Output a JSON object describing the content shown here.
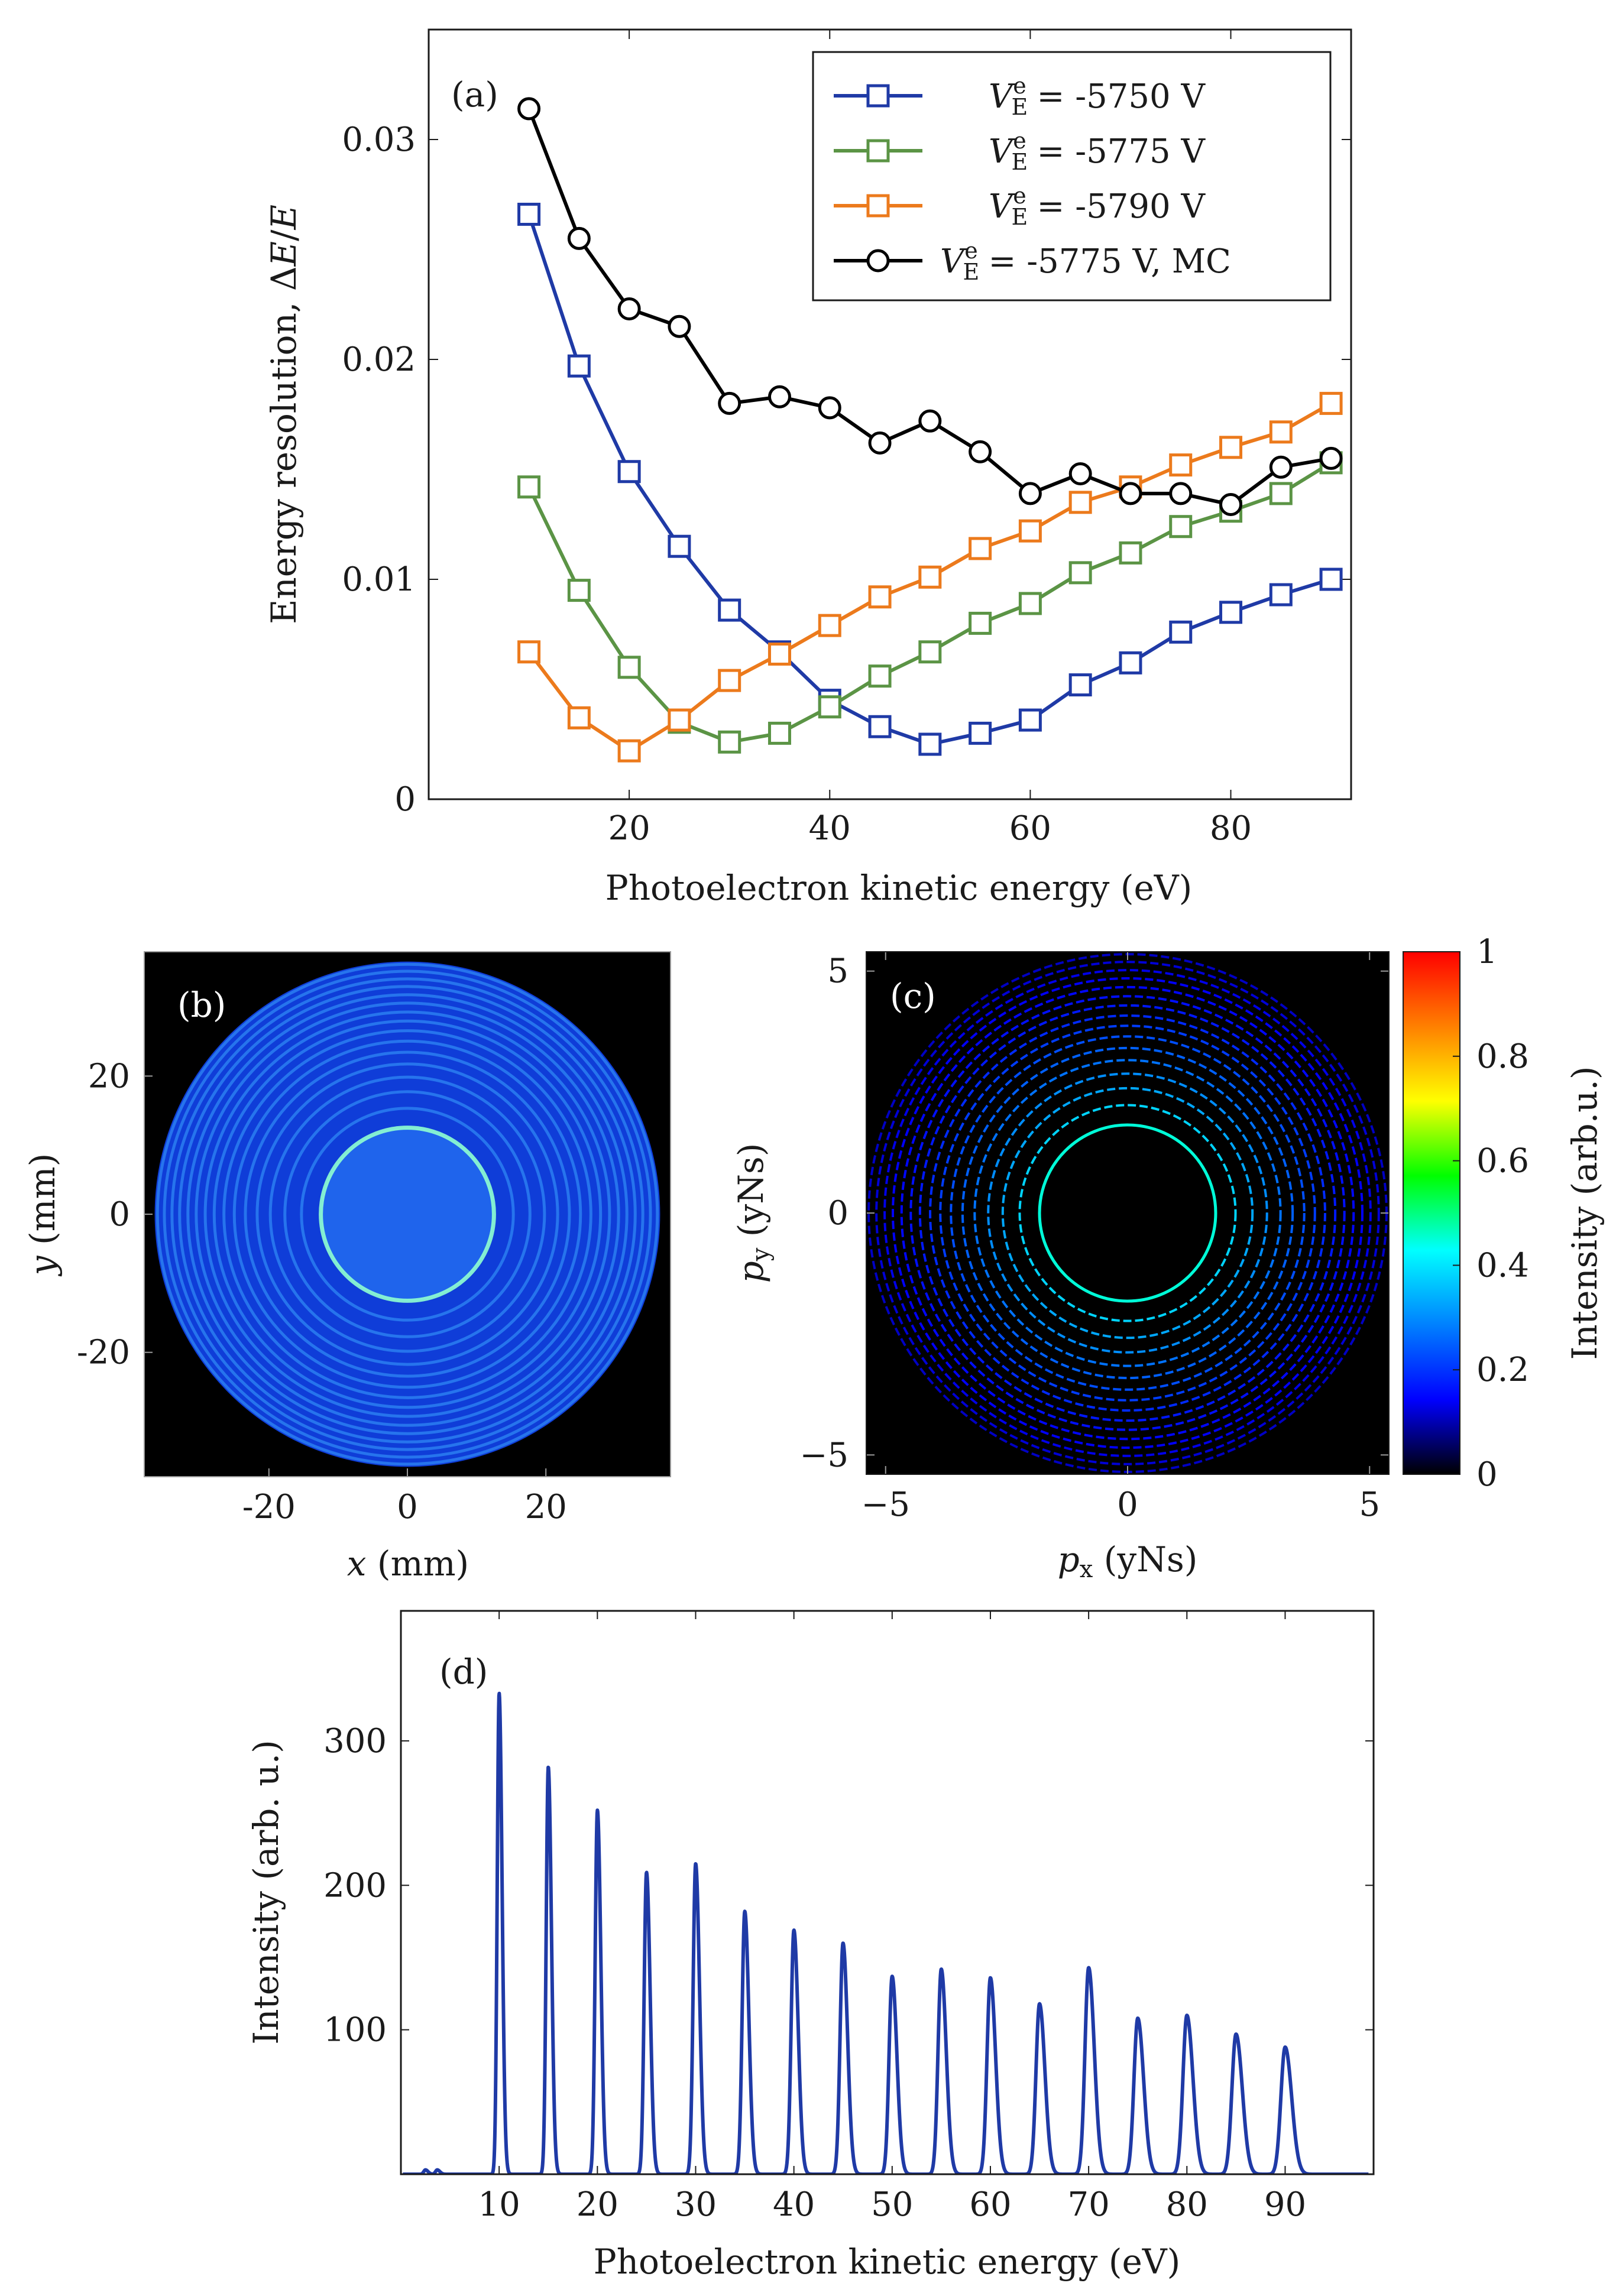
{
  "chart_data": [
    {
      "id": "a",
      "type": "line",
      "panel_label": "(a)",
      "xlabel": "Photoelectron kinetic energy (eV)",
      "ylabel": "Energy resolution, ΔE/E",
      "xlim": [
        0,
        92
      ],
      "ylim": [
        0,
        0.035
      ],
      "xticks": [
        20,
        40,
        60,
        80
      ],
      "xtick_labels": [
        "20",
        "40",
        "60",
        "80"
      ],
      "yticks": [
        0,
        0.01,
        0.02,
        0.03
      ],
      "ytick_labels": [
        "0",
        "0.01",
        "0.02",
        "0.03"
      ],
      "legend_position": "top-right",
      "x": [
        10,
        15,
        20,
        25,
        30,
        35,
        40,
        45,
        50,
        55,
        60,
        65,
        70,
        75,
        80,
        85,
        90
      ],
      "series": [
        {
          "name": "V_E^e = -5750 V",
          "legend_main": "V",
          "legend_sub": "E",
          "legend_sup": "e",
          "legend_text": " = -5750 V",
          "marker": "square",
          "color": "#1f3aa6",
          "values": [
            0.0266,
            0.0197,
            0.0149,
            0.0115,
            0.0086,
            0.0067,
            0.0045,
            0.0033,
            0.0025,
            0.003,
            0.0036,
            0.0052,
            0.0062,
            0.0076,
            0.0085,
            0.0093,
            0.01
          ]
        },
        {
          "name": "V_E^e = -5775 V",
          "legend_main": "V",
          "legend_sub": "E",
          "legend_sup": "e",
          "legend_text": " = -5775 V",
          "marker": "square",
          "color": "#5b9445",
          "values": [
            0.0142,
            0.0095,
            0.006,
            0.0035,
            0.0026,
            0.003,
            0.0042,
            0.0056,
            0.0067,
            0.008,
            0.0089,
            0.0103,
            0.0112,
            0.0124,
            0.0131,
            0.0139,
            0.0153
          ]
        },
        {
          "name": "V_E^e = -5790 V",
          "legend_main": "V",
          "legend_sub": "E",
          "legend_sup": "e",
          "legend_text": " = -5790 V",
          "marker": "square",
          "color": "#ec7a1c",
          "values": [
            0.0067,
            0.0037,
            0.0022,
            0.0036,
            0.0054,
            0.0066,
            0.0079,
            0.0092,
            0.0101,
            0.0114,
            0.0122,
            0.0135,
            0.0142,
            0.0152,
            0.016,
            0.0167,
            0.018
          ]
        },
        {
          "name": "V_E^e = -5775 V, MC",
          "legend_main": "V",
          "legend_sub": "E",
          "legend_sup": "e",
          "legend_text": " = -5775 V, MC",
          "marker": "circle",
          "color": "#000000",
          "values": [
            0.0314,
            0.0255,
            0.0223,
            0.0215,
            0.018,
            0.0183,
            0.0178,
            0.0162,
            0.0172,
            0.0158,
            0.0139,
            0.0148,
            0.0139,
            0.0139,
            0.0134,
            0.0151,
            0.0155
          ]
        }
      ]
    },
    {
      "id": "b",
      "type": "heatmap",
      "panel_label": "(b)",
      "xlabel_var": "x",
      "xlabel_unit": " (mm)",
      "ylabel_var": "y",
      "ylabel_unit": " (mm)",
      "xlim": [
        -38,
        38
      ],
      "ylim": [
        -38,
        38
      ],
      "xticks": [
        -20,
        0,
        20
      ],
      "xtick_labels": [
        "-20",
        "0",
        "20"
      ],
      "yticks": [
        -20,
        0,
        20
      ],
      "ytick_labels": [
        "-20",
        "0",
        "20"
      ],
      "detector_radius": 36.5,
      "central_disc_radius": 12.5,
      "ring_radii": [
        12.5,
        15.3,
        17.7,
        19.8,
        21.7,
        23.4,
        25.0,
        26.5,
        27.9,
        29.2,
        30.5,
        31.7,
        32.9,
        34.0,
        35.1,
        36.1
      ],
      "colors": {
        "background": "#000000",
        "disc_fill": "#1f64ec",
        "outer_fill": "#0f3dd8",
        "ring": "#3aa2ff",
        "inner_ring": "#8fffd0"
      }
    },
    {
      "id": "c",
      "type": "heatmap",
      "panel_label": "(c)",
      "xlabel_var": "p",
      "xlabel_sub": "x",
      "xlabel_unit": " (yNs)",
      "ylabel_var": "p",
      "ylabel_sub": "y",
      "ylabel_unit": " (yNs)",
      "xlim": [
        -5.4,
        5.4
      ],
      "ylim": [
        -5.4,
        5.4
      ],
      "xticks": [
        -5,
        0,
        5
      ],
      "xtick_labels": [
        "−5",
        "0",
        "5"
      ],
      "yticks": [
        -5,
        0,
        5
      ],
      "ytick_labels": [
        "−5",
        "0",
        "5"
      ],
      "ring_radii": [
        1.82,
        2.23,
        2.58,
        2.88,
        3.16,
        3.41,
        3.65,
        3.87,
        4.08,
        4.29,
        4.48,
        4.67,
        4.85,
        5.02,
        5.19,
        5.35
      ],
      "ring_intensity": [
        0.45,
        0.38,
        0.33,
        0.3,
        0.27,
        0.25,
        0.23,
        0.21,
        0.19,
        0.17,
        0.16,
        0.15,
        0.14,
        0.13,
        0.12,
        0.11
      ],
      "colorbar": {
        "label": "Intensity (arb.u.)",
        "range": [
          0,
          1
        ],
        "ticks": [
          0,
          0.2,
          0.4,
          0.6,
          0.8,
          1
        ],
        "tick_labels": [
          "0",
          "0.2",
          "0.4",
          "0.6",
          "0.8",
          "1"
        ],
        "colormap": [
          "#000000",
          "#0000ff",
          "#0080ff",
          "#00ffff",
          "#00ff00",
          "#ffff00",
          "#ff8000",
          "#ff0000"
        ]
      }
    },
    {
      "id": "d",
      "type": "line",
      "panel_label": "(d)",
      "xlabel": "Photoelectron kinetic energy (eV)",
      "ylabel": "Intensity (arb. u.)",
      "xlim": [
        0,
        99
      ],
      "ylim": [
        0,
        390
      ],
      "xticks": [
        10,
        20,
        30,
        40,
        50,
        60,
        70,
        80,
        90
      ],
      "xtick_labels": [
        "10",
        "20",
        "30",
        "40",
        "50",
        "60",
        "70",
        "80",
        "90"
      ],
      "yticks": [
        100,
        200,
        300
      ],
      "ytick_labels": [
        "100",
        "200",
        "300"
      ],
      "line_color": "#1f3aa6",
      "peak_energies": [
        10,
        15,
        20,
        25,
        30,
        35,
        40,
        45,
        50,
        55,
        60,
        65,
        70,
        75,
        80,
        85,
        90
      ],
      "peak_heights": [
        333,
        282,
        252,
        209,
        215,
        182,
        169,
        160,
        137,
        142,
        136,
        118,
        143,
        108,
        110,
        97,
        88
      ],
      "small_peaks": [
        {
          "energy": 2.5,
          "height": 3
        },
        {
          "energy": 3.7,
          "height": 3
        }
      ]
    }
  ]
}
